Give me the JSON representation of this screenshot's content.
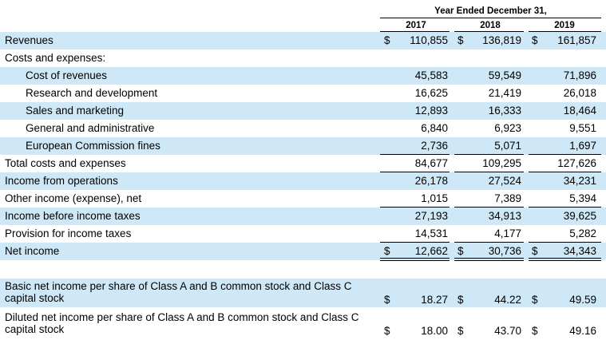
{
  "header": {
    "title": "Year Ended December 31,",
    "years": [
      "2017",
      "2018",
      "2019"
    ]
  },
  "rows": [
    {
      "label": "Revenues",
      "dollar": true,
      "values": [
        "110,855",
        "136,819",
        "161,857"
      ],
      "shade": true,
      "indent": false
    },
    {
      "label": "Costs and expenses:",
      "dollar": false,
      "values": [
        "",
        "",
        ""
      ],
      "shade": false,
      "indent": false
    },
    {
      "label": "Cost of revenues",
      "dollar": false,
      "values": [
        "45,583",
        "59,549",
        "71,896"
      ],
      "shade": true,
      "indent": true
    },
    {
      "label": "Research and development",
      "dollar": false,
      "values": [
        "16,625",
        "21,419",
        "26,018"
      ],
      "shade": false,
      "indent": true
    },
    {
      "label": "Sales and marketing",
      "dollar": false,
      "values": [
        "12,893",
        "16,333",
        "18,464"
      ],
      "shade": true,
      "indent": true
    },
    {
      "label": "General and administrative",
      "dollar": false,
      "values": [
        "6,840",
        "6,923",
        "9,551"
      ],
      "shade": false,
      "indent": true
    },
    {
      "label": "European Commission fines",
      "dollar": false,
      "values": [
        "2,736",
        "5,071",
        "1,697"
      ],
      "shade": true,
      "indent": true
    },
    {
      "label": "Total costs and expenses",
      "dollar": false,
      "values": [
        "84,677",
        "109,295",
        "127,626"
      ],
      "shade": false,
      "indent": false
    },
    {
      "label": "Income from operations",
      "dollar": false,
      "values": [
        "26,178",
        "27,524",
        "34,231"
      ],
      "shade": true,
      "indent": false
    },
    {
      "label": "Other income (expense), net",
      "dollar": false,
      "values": [
        "1,015",
        "7,389",
        "5,394"
      ],
      "shade": false,
      "indent": false
    },
    {
      "label": "Income before income taxes",
      "dollar": false,
      "values": [
        "27,193",
        "34,913",
        "39,625"
      ],
      "shade": true,
      "indent": false
    },
    {
      "label": "Provision for income taxes",
      "dollar": false,
      "values": [
        "14,531",
        "4,177",
        "5,282"
      ],
      "shade": false,
      "indent": false
    },
    {
      "label": "Net income",
      "dollar": true,
      "values": [
        "12,662",
        "30,736",
        "34,343"
      ],
      "shade": true,
      "indent": false
    },
    {
      "label": "",
      "dollar": false,
      "values": [
        "",
        "",
        ""
      ],
      "shade": false,
      "indent": false
    },
    {
      "label": "Basic net income per share of Class A and B common stock and Class C capital stock",
      "dollar": true,
      "values": [
        "18.27",
        "44.22",
        "49.59"
      ],
      "shade": true,
      "indent": false
    },
    {
      "label": "Diluted net income per share of Class A and B common stock and Class C capital stock",
      "dollar": true,
      "values": [
        "18.00",
        "43.70",
        "49.16"
      ],
      "shade": false,
      "indent": false
    }
  ],
  "colors": {
    "shade": "#cfe8f7",
    "text": "#000000"
  }
}
